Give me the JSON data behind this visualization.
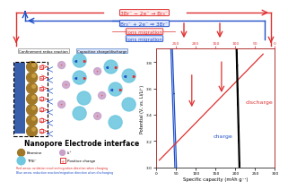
{
  "bg_color": "#ffffff",
  "reaction_top_red": "3Br⁻ − 2e⁻ → Br₃⁻",
  "reaction_top_blue": "Br₃⁻ + 2e⁻ ⇒ 3Br⁻",
  "ions_migration_red": "Ions migration",
  "ions_migration_blue": "Ions migration",
  "panel_left_label1": "Confinement redox reaction",
  "panel_left_label2": "Capacitive charge/discharge",
  "nanopore_label": "Nanopore Electrode interface",
  "legend_bromine": "Bromine",
  "legend_li": "Li⁺",
  "legend_tfsi": "TFSI⁻",
  "legend_pos_charge": "Positive charge",
  "red_arrow_text": "Red arrow: oxidation reaction/migration direction when charging",
  "blue_arrow_text": "Blue arrow: reduction reaction/migration direction when discharging",
  "xlabel": "Specific capacity (mAh g⁻¹)",
  "ylabel": "Potential (V, vs. Li/Li⁺)",
  "discharge_label": "discharge",
  "charge_label": "charge",
  "red_color": "#e03030",
  "blue_color": "#2050c8",
  "black_color": "#000000",
  "bromine_color": "#a07828",
  "tfsi_color": "#70c8e0",
  "li_color": "#c8a0c8",
  "electrode_color": "#3a5faa"
}
